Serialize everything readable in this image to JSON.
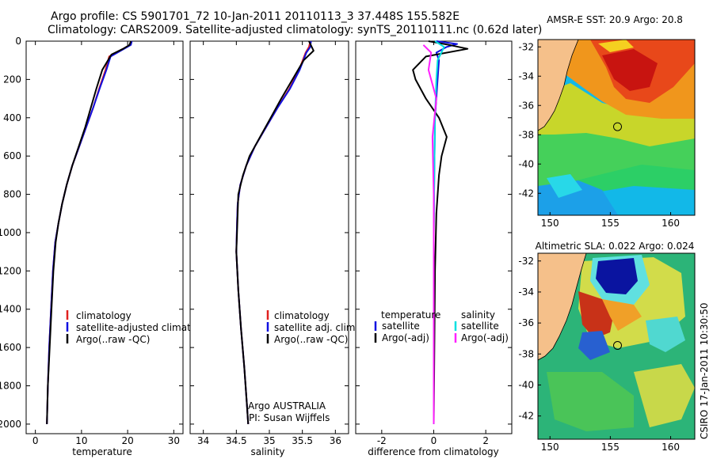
{
  "header": {
    "line1": "Argo profile: CS 5901701_72 10-Jan-2011 20110113_3 37.448S 155.582E",
    "line2": "Climatology: CARS2009. Satellite-adjusted climatology: synTS_20110111.nc (0.62d later)"
  },
  "footer": {
    "credit": "CSIRO 17-Jan-2011 10:30:50"
  },
  "colors": {
    "climatology": "#e0201f",
    "satellite": "#1010e0",
    "argo": "#000000",
    "sat_salinity": "#00e0e0",
    "argo_adj_salinity": "#ff20ff",
    "land": "#f5c08a"
  },
  "chart_data": [
    {
      "type": "line",
      "id": "temperature",
      "xlabel": "temperature",
      "xlim": [
        -2,
        32
      ],
      "ylim": [
        0,
        2050
      ],
      "y_reversed": true,
      "xticks": [
        "0",
        "10",
        "20",
        "30"
      ],
      "yticks": [
        "0",
        "200",
        "400",
        "600",
        "800",
        "1000",
        "1200",
        "1400",
        "1600",
        "1800",
        "2000"
      ],
      "series": [
        {
          "name": "climatology",
          "color": "#e0201f",
          "points": [
            [
              20.8,
              0
            ],
            [
              20.6,
              20
            ],
            [
              19,
              40
            ],
            [
              16,
              80
            ],
            [
              15.2,
              150
            ],
            [
              13.8,
              250
            ],
            [
              12.5,
              350
            ],
            [
              11,
              450
            ],
            [
              9.5,
              550
            ],
            [
              8,
              650
            ],
            [
              6.8,
              750
            ],
            [
              5.8,
              850
            ],
            [
              5,
              950
            ],
            [
              4.3,
              1050
            ],
            [
              3.8,
              1200
            ],
            [
              3.4,
              1400
            ],
            [
              3.0,
              1600
            ],
            [
              2.7,
              1800
            ],
            [
              2.5,
              2000
            ]
          ]
        },
        {
          "name": "satellite-adjusted climatology",
          "color": "#1010e0",
          "points": [
            [
              20.9,
              0
            ],
            [
              20.7,
              20
            ],
            [
              19.2,
              40
            ],
            [
              16.3,
              80
            ],
            [
              15.4,
              150
            ],
            [
              13.9,
              250
            ],
            [
              12.5,
              350
            ],
            [
              11,
              450
            ],
            [
              9.5,
              550
            ],
            [
              8,
              650
            ],
            [
              6.8,
              750
            ],
            [
              5.8,
              850
            ],
            [
              5,
              950
            ],
            [
              4.3,
              1050
            ],
            [
              3.8,
              1200
            ],
            [
              3.4,
              1400
            ],
            [
              3.0,
              1600
            ],
            [
              2.7,
              1800
            ],
            [
              2.5,
              2000
            ]
          ]
        },
        {
          "name": "Argo(..raw -QC)",
          "color": "#000000",
          "points": [
            [
              20.7,
              0
            ],
            [
              20.4,
              20
            ],
            [
              19,
              40
            ],
            [
              16.5,
              70
            ],
            [
              14.5,
              150
            ],
            [
              13.2,
              250
            ],
            [
              12,
              350
            ],
            [
              10.8,
              450
            ],
            [
              9.4,
              550
            ],
            [
              8,
              650
            ],
            [
              6.8,
              750
            ],
            [
              5.8,
              850
            ],
            [
              5,
              950
            ],
            [
              4.4,
              1050
            ],
            [
              3.9,
              1200
            ],
            [
              3.5,
              1400
            ],
            [
              3.1,
              1600
            ],
            [
              2.7,
              1800
            ],
            [
              2.5,
              2000
            ]
          ]
        }
      ],
      "legend": {
        "placement": "lower-right",
        "entries": [
          "climatology",
          "satellite-adjusted climatology",
          "Argo(..raw -QC)"
        ]
      }
    },
    {
      "type": "line",
      "id": "salinity",
      "xlabel": "salinity",
      "xlim": [
        33.8,
        36.2
      ],
      "ylim": [
        0,
        2050
      ],
      "y_reversed": true,
      "xticks": [
        "34",
        "34.5",
        "35",
        "35.5",
        "36"
      ],
      "series": [
        {
          "name": "climatology",
          "color": "#e0201f",
          "points": [
            [
              35.62,
              0
            ],
            [
              35.6,
              30
            ],
            [
              35.55,
              60
            ],
            [
              35.45,
              150
            ],
            [
              35.3,
              250
            ],
            [
              35.12,
              350
            ],
            [
              34.95,
              450
            ],
            [
              34.78,
              550
            ],
            [
              34.65,
              650
            ],
            [
              34.56,
              750
            ],
            [
              34.52,
              850
            ],
            [
              34.51,
              950
            ],
            [
              34.5,
              1100
            ],
            [
              34.53,
              1300
            ],
            [
              34.57,
              1500
            ],
            [
              34.62,
              1700
            ],
            [
              34.66,
              1900
            ],
            [
              34.68,
              2000
            ]
          ]
        },
        {
          "name": "satellite adj. clim.",
          "color": "#1010e0",
          "points": [
            [
              35.63,
              0
            ],
            [
              35.62,
              30
            ],
            [
              35.56,
              60
            ],
            [
              35.46,
              150
            ],
            [
              35.31,
              250
            ],
            [
              35.12,
              350
            ],
            [
              34.95,
              450
            ],
            [
              34.78,
              550
            ],
            [
              34.65,
              650
            ],
            [
              34.56,
              750
            ],
            [
              34.52,
              850
            ],
            [
              34.51,
              950
            ],
            [
              34.5,
              1100
            ],
            [
              34.53,
              1300
            ],
            [
              34.57,
              1500
            ],
            [
              34.62,
              1700
            ],
            [
              34.66,
              1900
            ],
            [
              34.68,
              2000
            ]
          ]
        },
        {
          "name": "Argo(..raw -QC)",
          "color": "#000000",
          "points": [
            [
              35.6,
              0
            ],
            [
              35.67,
              50
            ],
            [
              35.52,
              100
            ],
            [
              35.35,
              200
            ],
            [
              35.18,
              300
            ],
            [
              35.02,
              400
            ],
            [
              34.86,
              500
            ],
            [
              34.7,
              600
            ],
            [
              34.6,
              700
            ],
            [
              34.53,
              800
            ],
            [
              34.52,
              900
            ],
            [
              34.51,
              1000
            ],
            [
              34.5,
              1100
            ],
            [
              34.53,
              1300
            ],
            [
              34.57,
              1500
            ],
            [
              34.62,
              1700
            ],
            [
              34.66,
              1900
            ],
            [
              34.68,
              2000
            ]
          ]
        }
      ],
      "legend": {
        "placement": "lower-right",
        "entries": [
          "climatology",
          "satellite adj. clim.",
          "Argo(..raw -QC)"
        ]
      },
      "annotations": [
        "Argo AUSTRALIA",
        "PI: Susan Wijffels"
      ]
    },
    {
      "type": "line",
      "id": "difference",
      "xlabel": "difference from climatology",
      "xlim": [
        -3,
        3
      ],
      "ylim": [
        0,
        2050
      ],
      "y_reversed": true,
      "xticks": [
        "-2",
        "0",
        "2"
      ],
      "series": [
        {
          "name": "temperature satellite",
          "color": "#1010e0",
          "points": [
            [
              0.1,
              0
            ],
            [
              0.9,
              15
            ],
            [
              0.5,
              30
            ],
            [
              0.1,
              60
            ],
            [
              0.2,
              100
            ],
            [
              0.15,
              200
            ],
            [
              0.05,
              400
            ],
            [
              0.02,
              700
            ],
            [
              0,
              1000
            ],
            [
              0,
              2000
            ]
          ]
        },
        {
          "name": "temperature Argo(-adj)",
          "color": "#000000",
          "points": [
            [
              -0.2,
              0
            ],
            [
              0.6,
              20
            ],
            [
              1.3,
              40
            ],
            [
              -0.3,
              80
            ],
            [
              -0.8,
              150
            ],
            [
              -0.7,
              200
            ],
            [
              -0.3,
              300
            ],
            [
              0.2,
              400
            ],
            [
              0.5,
              500
            ],
            [
              0.3,
              600
            ],
            [
              0.2,
              700
            ],
            [
              0.1,
              900
            ],
            [
              0.05,
              1200
            ],
            [
              0,
              2000
            ]
          ]
        },
        {
          "name": "salinity satellite",
          "color": "#00e0e0",
          "points": [
            [
              0.05,
              0
            ],
            [
              0.4,
              30
            ],
            [
              0.15,
              100
            ],
            [
              0.1,
              200
            ],
            [
              0.05,
              400
            ],
            [
              0.02,
              700
            ],
            [
              0,
              1000
            ],
            [
              0,
              2000
            ]
          ]
        },
        {
          "name": "salinity Argo(-adj)",
          "color": "#ff20ff",
          "points": [
            [
              -0.4,
              20
            ],
            [
              -0.1,
              60
            ],
            [
              -0.2,
              150
            ],
            [
              0.1,
              300
            ],
            [
              -0.05,
              500
            ],
            [
              0,
              800
            ],
            [
              0,
              2000
            ]
          ]
        }
      ],
      "legend": {
        "placement": "lower-right",
        "group_titles": [
          "temperature",
          "salinity"
        ],
        "entries": [
          "satellite",
          "Argo(-adj)",
          "satellite",
          "Argo(-adj)"
        ]
      }
    },
    {
      "type": "heatmap",
      "id": "sst-map",
      "title": "AMSR-E SST: 20.9 Argo: 20.8",
      "xlim": [
        149,
        162
      ],
      "ylim": [
        -43.5,
        -31.5
      ],
      "xticks": [
        "150",
        "155",
        "160"
      ],
      "yticks": [
        "-32",
        "-34",
        "-36",
        "-38",
        "-40",
        "-42"
      ],
      "marker": {
        "lon": 155.6,
        "lat": -37.45
      }
    },
    {
      "type": "heatmap",
      "id": "sla-map",
      "title": "Altimetric SLA: 0.022 Argo: 0.024",
      "xlim": [
        149,
        162
      ],
      "ylim": [
        -43.5,
        -31.5
      ],
      "xticks": [
        "150",
        "155",
        "160"
      ],
      "yticks": [
        "-32",
        "-34",
        "-36",
        "-38",
        "-40",
        "-42"
      ],
      "marker": {
        "lon": 155.6,
        "lat": -37.45
      }
    }
  ]
}
